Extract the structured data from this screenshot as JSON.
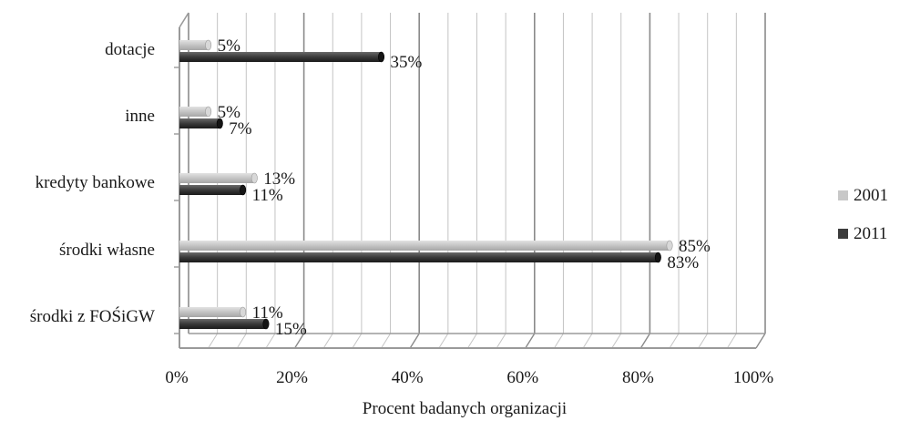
{
  "chart_data": {
    "type": "bar",
    "orientation": "horizontal",
    "style": "3d",
    "categories": [
      "dotacje",
      "inne",
      "kredyty bankowe",
      "środki własne",
      "środki z FOŚiGW"
    ],
    "series": [
      {
        "name": "2001",
        "color": "#c8c8c8",
        "values": [
          5,
          5,
          13,
          85,
          11
        ],
        "labels": [
          "5%",
          "5%",
          "13%",
          "85%",
          "11%"
        ]
      },
      {
        "name": "2011",
        "color": "#3c3c3c",
        "values": [
          35,
          7,
          11,
          83,
          15
        ],
        "labels": [
          "35%",
          "7%",
          "11%",
          "83%",
          "15%"
        ]
      }
    ],
    "xlim": [
      0,
      100
    ],
    "xticks": [
      0,
      20,
      40,
      60,
      80,
      100
    ],
    "xtick_labels": [
      "0%",
      "20%",
      "40%",
      "60%",
      "80%",
      "100%"
    ],
    "xlabel": "Procent badanych organizacji",
    "ylabel": "",
    "title": "",
    "grid": true,
    "legend_position": "right"
  }
}
